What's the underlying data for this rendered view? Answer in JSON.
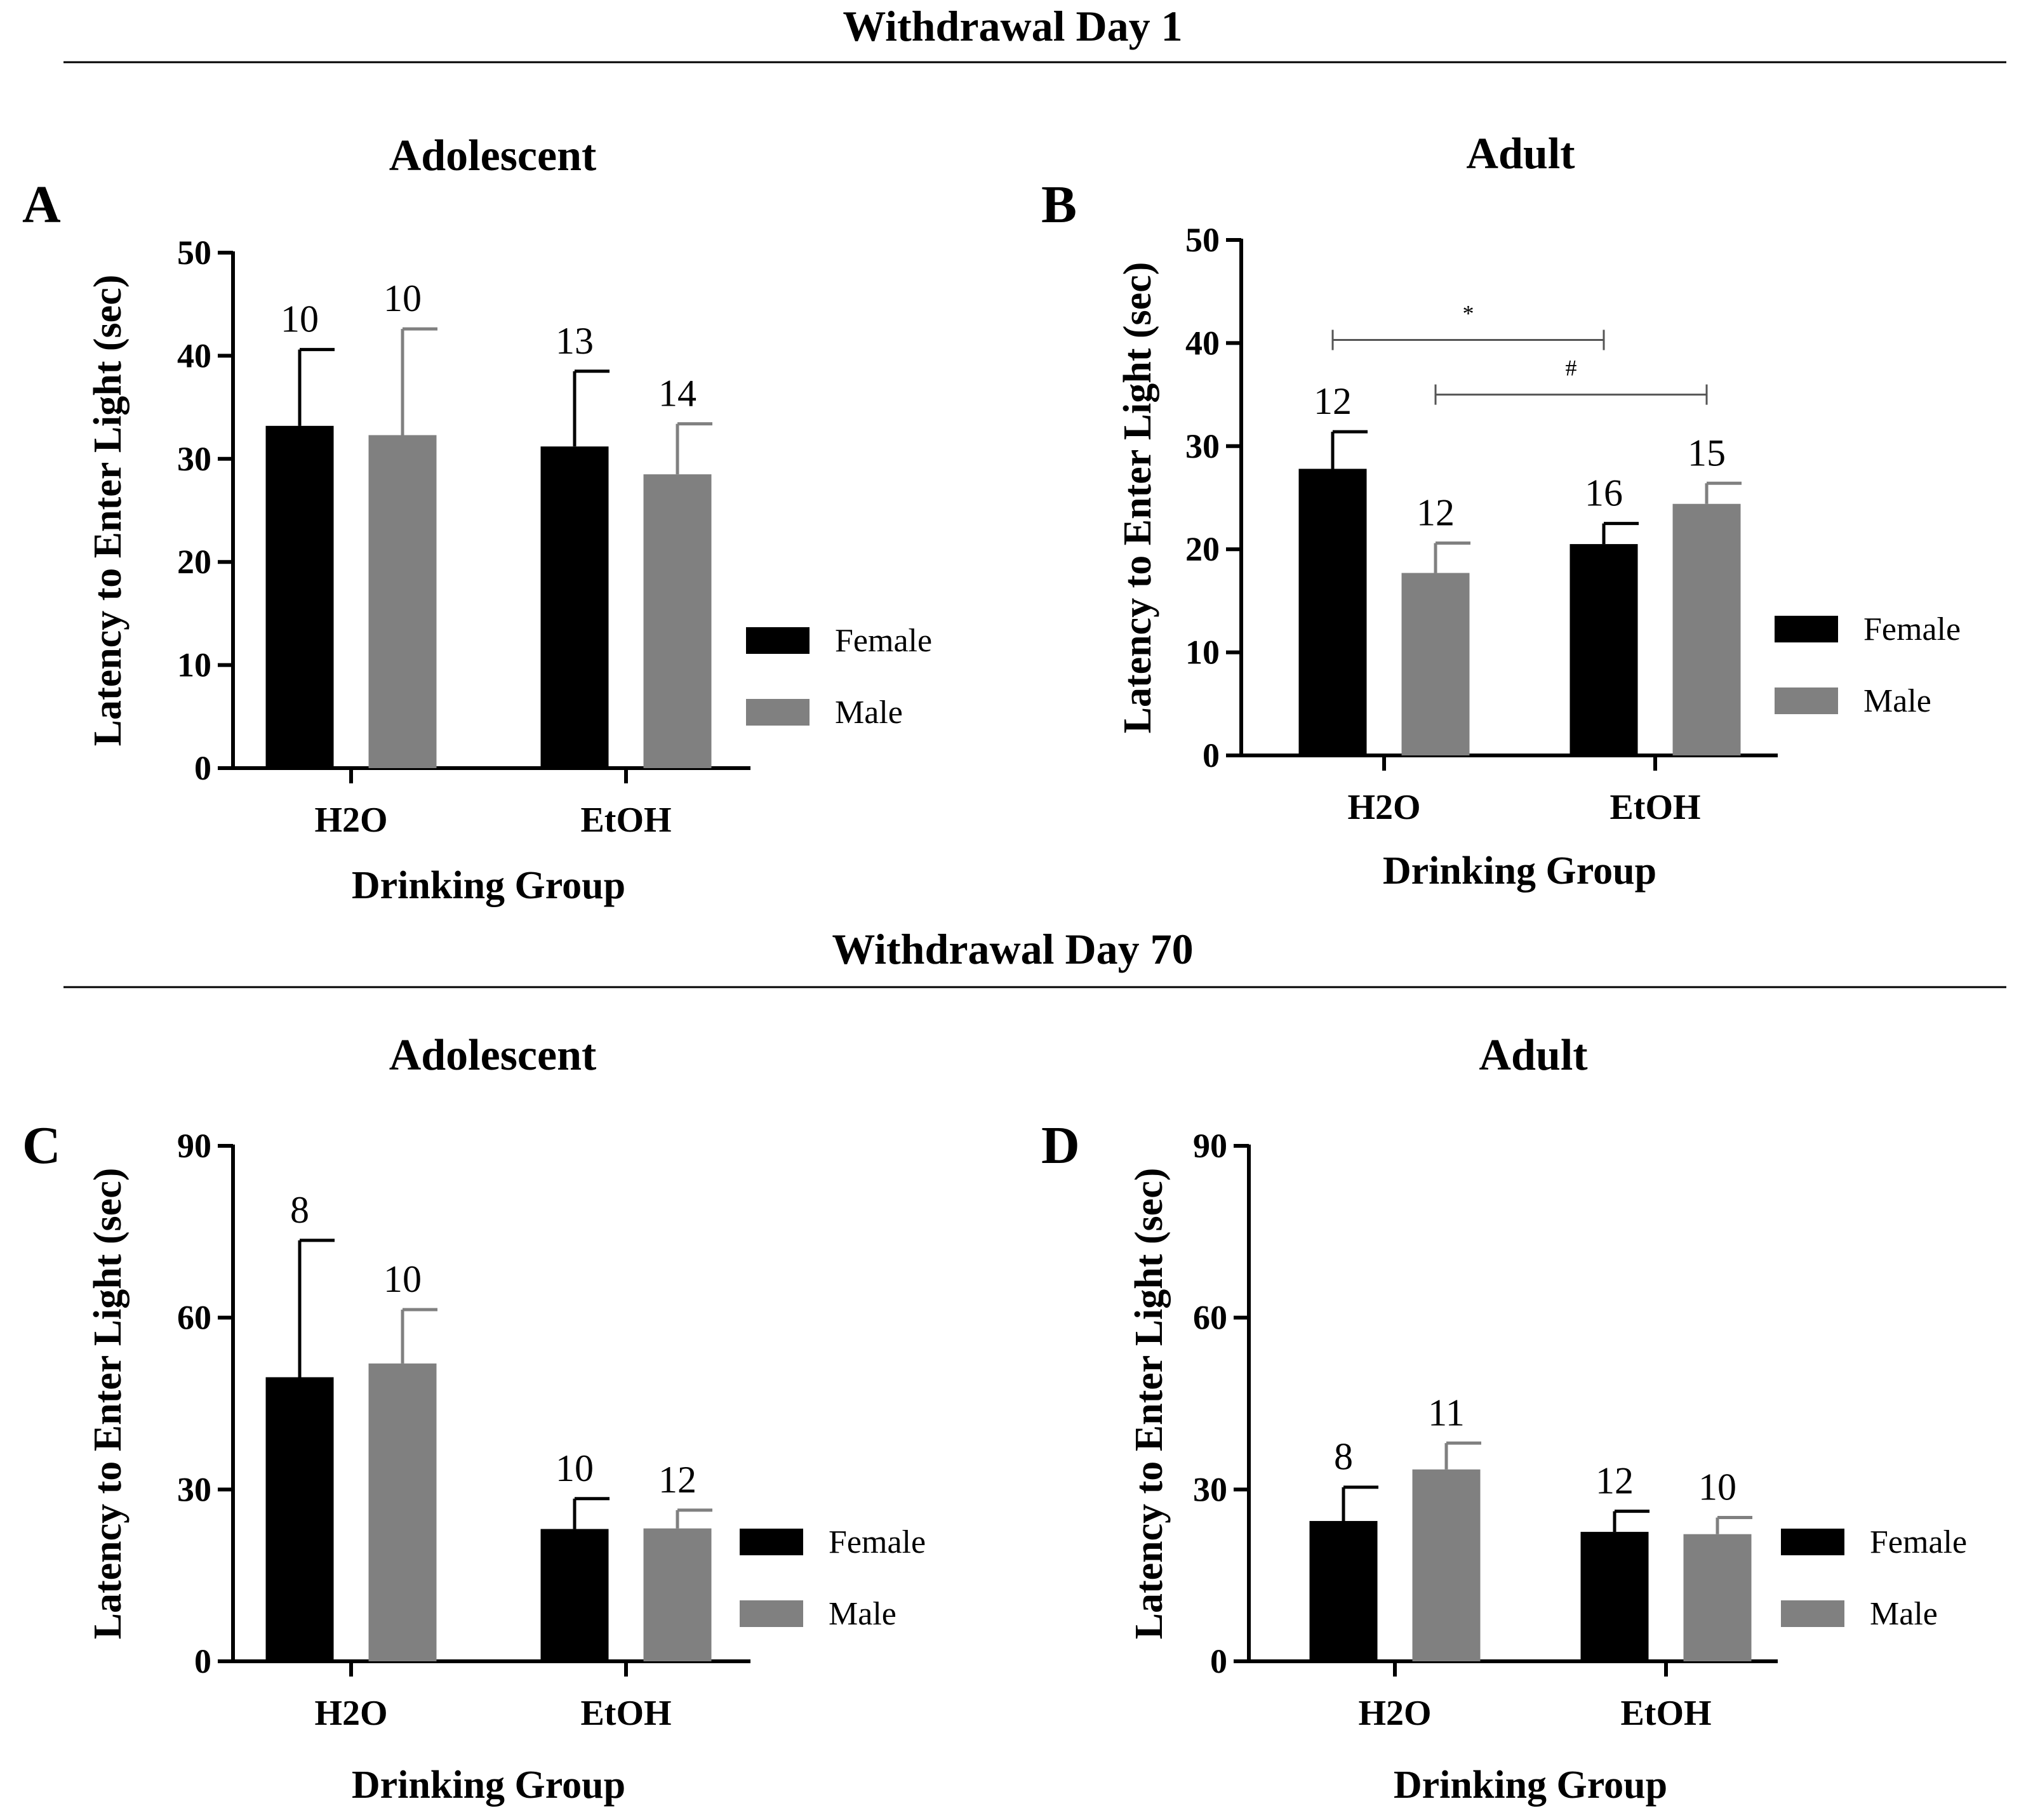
{
  "sections": [
    {
      "title": "Withdrawal Day 1"
    },
    {
      "title": "Withdrawal Day 70"
    }
  ],
  "colors": {
    "female": "#000000",
    "male": "#808080",
    "sig_line": "#555555"
  },
  "chart_data": [
    {
      "type": "bar",
      "panel": "A",
      "title": "Adolescent",
      "xlabel": "Drinking Group",
      "ylabel": "Latency to Enter Light (sec)",
      "ylim": [
        0,
        50
      ],
      "yticks": [
        0,
        10,
        20,
        30,
        40,
        50
      ],
      "categories": [
        "H2O",
        "EtOH"
      ],
      "legend_position": "right",
      "series": [
        {
          "name": "Female",
          "values": [
            33.2,
            31.2
          ],
          "error": [
            7.4,
            7.3
          ],
          "n": [
            "10",
            "13"
          ]
        },
        {
          "name": "Male",
          "values": [
            32.3,
            28.5
          ],
          "error": [
            10.3,
            4.9
          ],
          "n": [
            "10",
            "14"
          ]
        }
      ],
      "annotations": []
    },
    {
      "type": "bar",
      "panel": "B",
      "title": "Adult",
      "xlabel": "Drinking Group",
      "ylabel": "Latency to Enter Light (sec)",
      "ylim": [
        0,
        50
      ],
      "yticks": [
        0,
        10,
        20,
        30,
        40,
        50
      ],
      "categories": [
        "H2O",
        "EtOH"
      ],
      "legend_position": "right",
      "series": [
        {
          "name": "Female",
          "values": [
            27.8,
            20.5
          ],
          "error": [
            3.6,
            2.0
          ],
          "n": [
            "12",
            "16"
          ]
        },
        {
          "name": "Male",
          "values": [
            17.7,
            24.4
          ],
          "error": [
            2.9,
            2.0
          ],
          "n": [
            "12",
            "15"
          ]
        }
      ],
      "annotations": [
        {
          "symbol": "*",
          "from": "H2O Female",
          "to": "EtOH Female",
          "level": 40.3
        },
        {
          "symbol": "#",
          "from": "H2O Male",
          "to": "EtOH Male",
          "level": 35
        }
      ]
    },
    {
      "type": "bar",
      "panel": "C",
      "title": "Adolescent",
      "xlabel": "Drinking Group",
      "ylabel": "Latency to Enter Light (sec)",
      "ylim": [
        0,
        90
      ],
      "yticks": [
        0,
        30,
        60,
        90
      ],
      "categories": [
        "H2O",
        "EtOH"
      ],
      "legend_position": "right",
      "series": [
        {
          "name": "Female",
          "values": [
            49.6,
            23.1
          ],
          "error": [
            23.9,
            5.3
          ],
          "n": [
            "8",
            "10"
          ]
        },
        {
          "name": "Male",
          "values": [
            52.0,
            23.2
          ],
          "error": [
            9.4,
            3.2
          ],
          "n": [
            "10",
            "12"
          ]
        }
      ],
      "annotations": []
    },
    {
      "type": "bar",
      "panel": "D",
      "title": "Adult",
      "xlabel": "Drinking Group",
      "ylabel": "Latency to Enter Light (sec)",
      "ylim": [
        0,
        90
      ],
      "yticks": [
        0,
        30,
        60,
        90
      ],
      "categories": [
        "H2O",
        "EtOH"
      ],
      "legend_position": "right",
      "series": [
        {
          "name": "Female",
          "values": [
            24.5,
            22.6
          ],
          "error": [
            5.9,
            3.6
          ],
          "n": [
            "8",
            "12"
          ]
        },
        {
          "name": "Male",
          "values": [
            33.5,
            22.2
          ],
          "error": [
            4.6,
            2.9
          ],
          "n": [
            "11",
            "10"
          ]
        }
      ],
      "annotations": []
    }
  ]
}
